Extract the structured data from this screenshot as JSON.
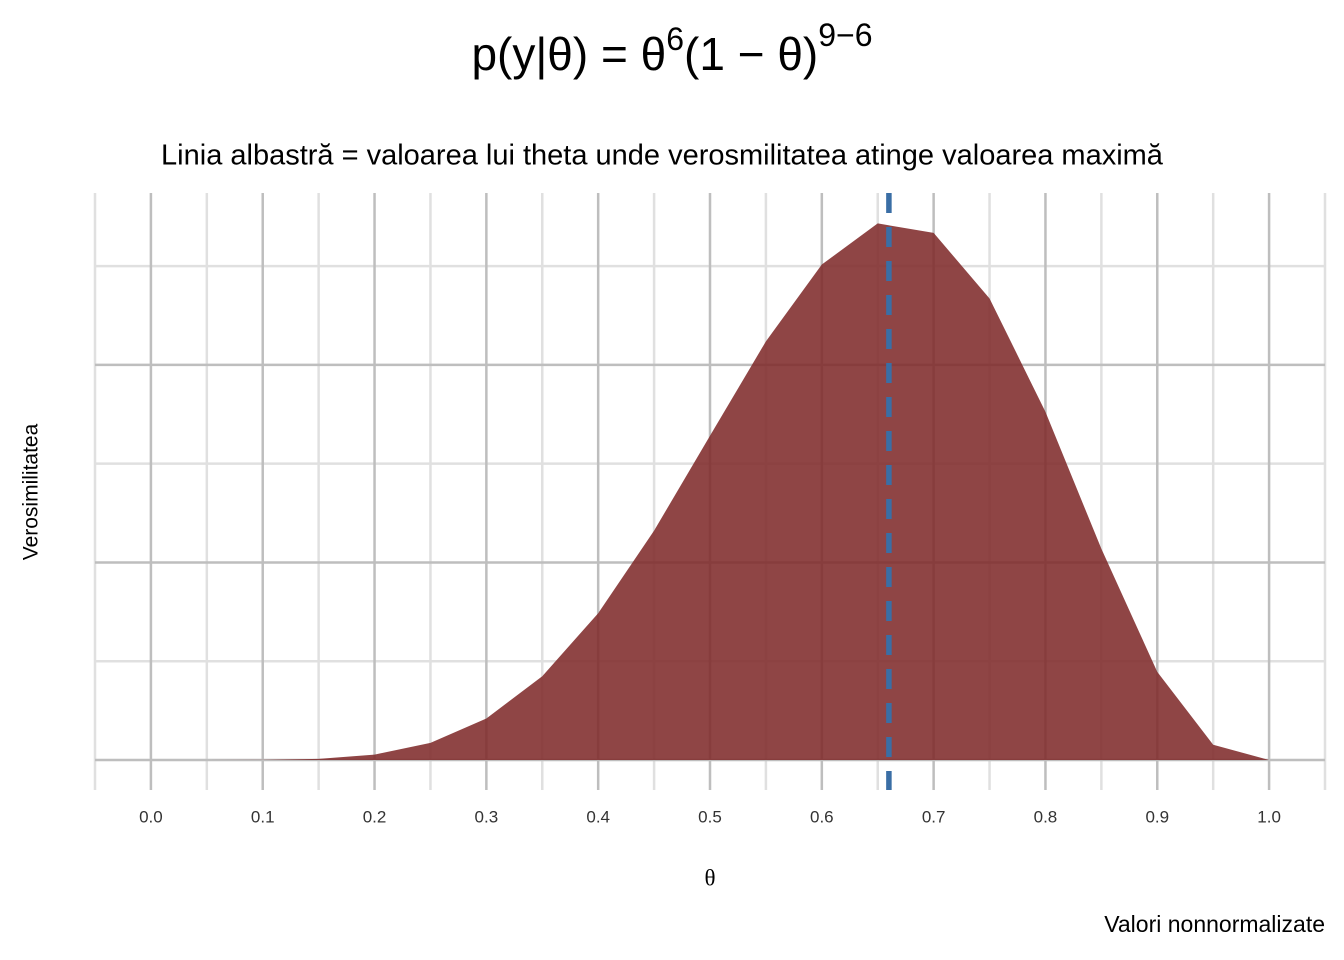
{
  "chart_data": {
    "type": "area",
    "title": {
      "base": "p(y|θ) = θ",
      "exp1": "6",
      "mid": "(1 − θ)",
      "exp2": "9−6"
    },
    "subtitle": "Linia albastră = valoarea lui theta unde verosmilitatea atinge valoarea maximă",
    "y_label": "Verosimilitatea",
    "x_label": "θ",
    "caption": "Valori nonnormalizate",
    "x": [
      0,
      0.05,
      0.1,
      0.15,
      0.2,
      0.25,
      0.3,
      0.35,
      0.4,
      0.45,
      0.5,
      0.55,
      0.6,
      0.65,
      0.7,
      0.75,
      0.8,
      0.85,
      0.9,
      0.95,
      1.0
    ],
    "values": [
      0,
      1e-05,
      0.00061,
      0.00588,
      0.0275,
      0.0865,
      0.21,
      0.424,
      0.743,
      1.161,
      1.641,
      2.119,
      2.508,
      2.716,
      2.668,
      2.336,
      1.762,
      1.069,
      0.446,
      0.0772,
      0
    ],
    "color": "#7f2b2b",
    "vline": 0.66,
    "vline_color": "#3a6ea5",
    "xlim": [
      -0.05,
      1.05
    ],
    "ylim": [
      0,
      2.87
    ],
    "xticks": [
      {
        "value": 0,
        "label": "0.0"
      },
      0.1,
      0.2,
      0.3,
      0.4,
      0.5,
      0.6,
      0.7,
      0.8,
      0.9,
      {
        "value": 1,
        "label": "1.0"
      }
    ],
    "xticks_minor": [
      -0.05,
      0.05,
      0.15,
      0.25,
      0.35,
      0.45,
      0.55,
      0.65,
      0.75,
      0.85,
      0.95,
      1.05
    ],
    "yticks": [
      0,
      1,
      2
    ],
    "yticks_minor": [
      0.5,
      1.5,
      2.5
    ],
    "grid": true
  }
}
